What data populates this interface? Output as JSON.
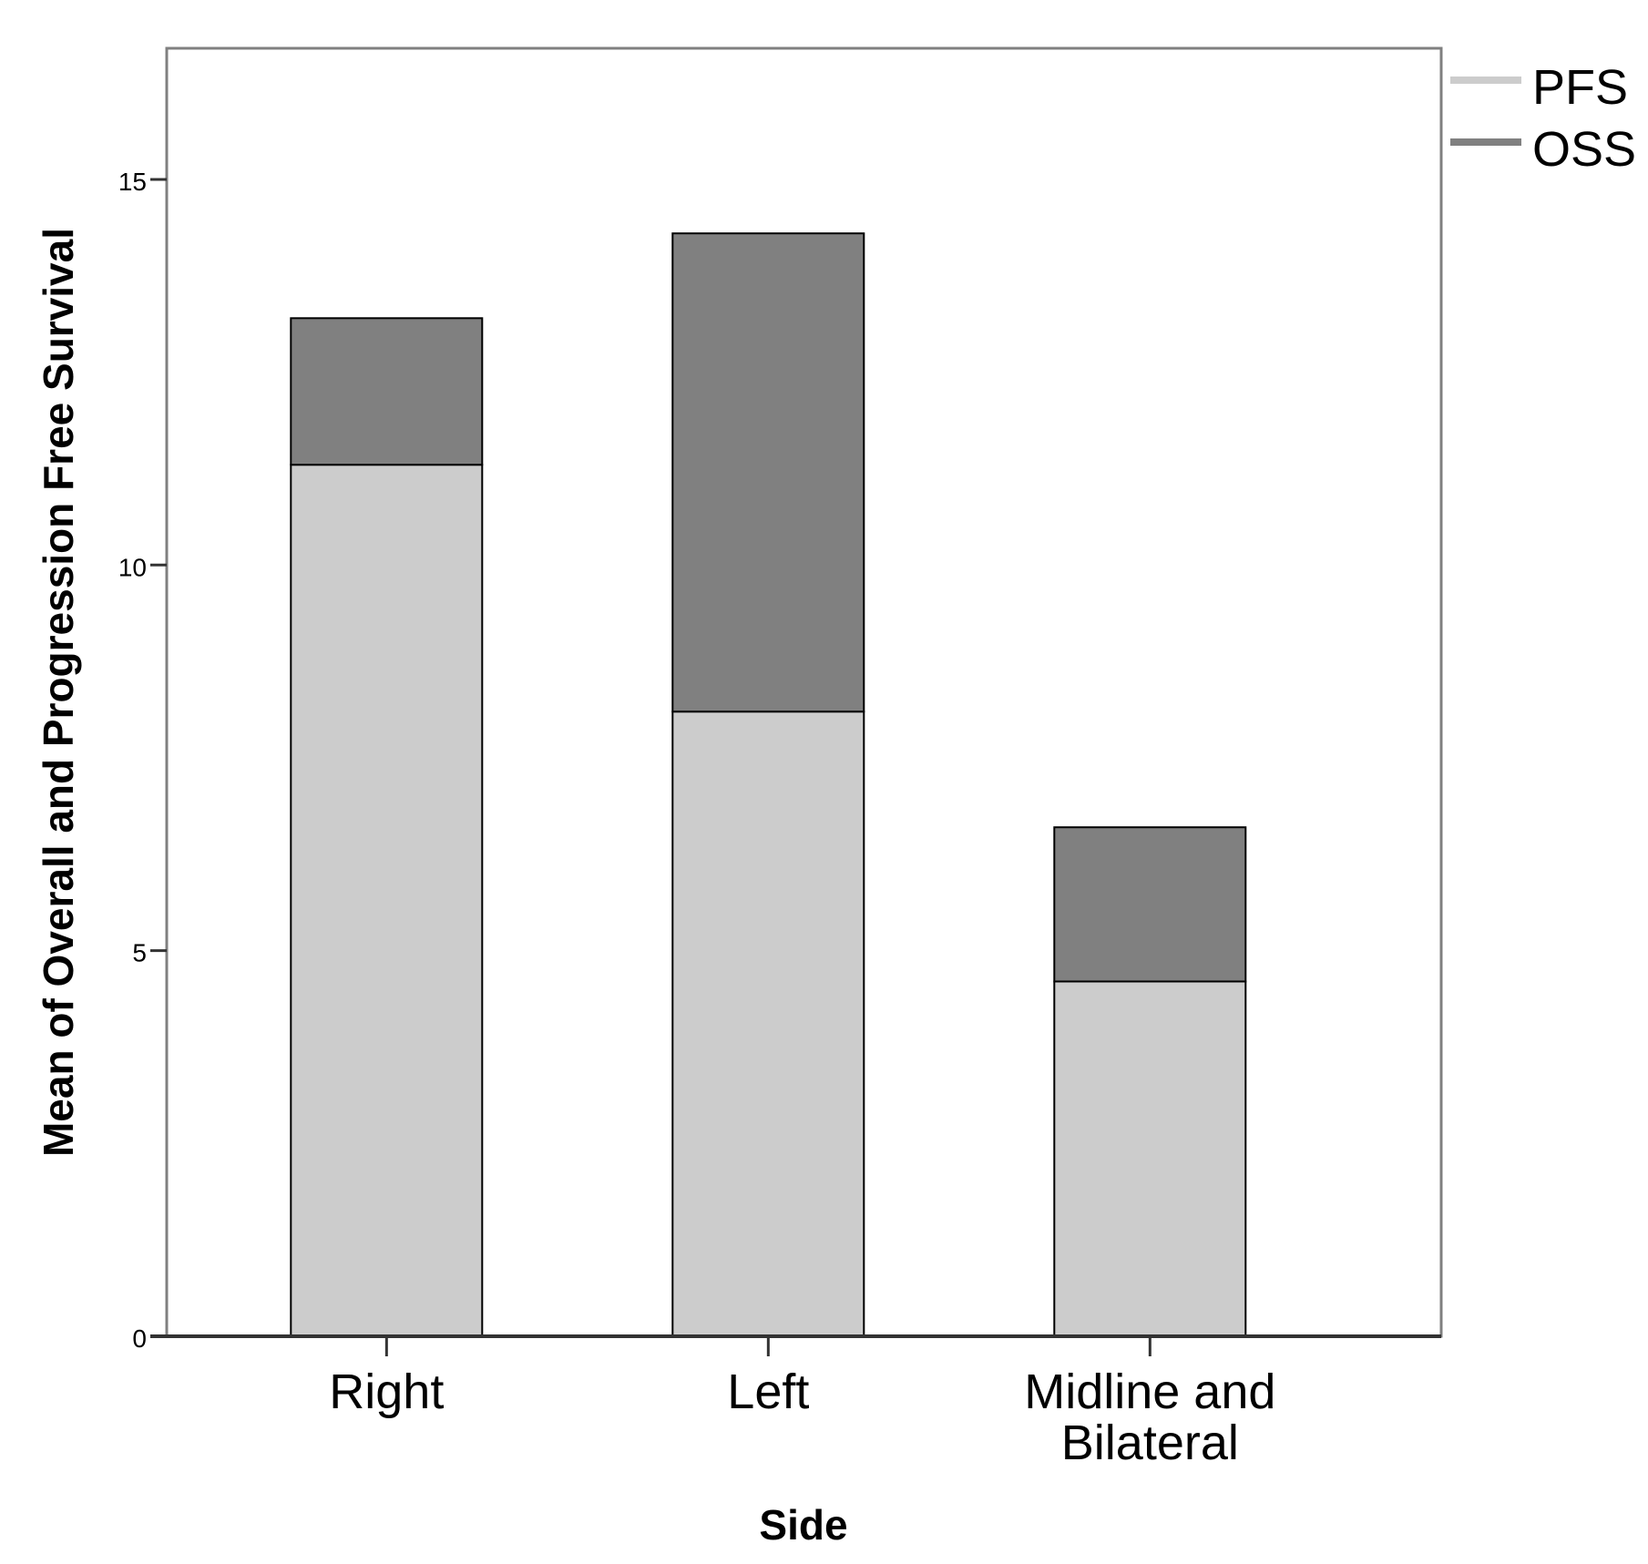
{
  "chart_data": {
    "type": "bar",
    "stacked": true,
    "categories": [
      "Right",
      "Left",
      "Midline and Bilateral"
    ],
    "category_lines": [
      [
        "Right"
      ],
      [
        "Left"
      ],
      [
        "Midline and",
        "Bilateral"
      ]
    ],
    "series": [
      {
        "name": "PFS",
        "values": [
          11.3,
          8.1,
          4.6
        ],
        "color": "#cccccc"
      },
      {
        "name": "OSS",
        "values": [
          1.9,
          6.2,
          2.0
        ],
        "color": "#808080"
      }
    ],
    "xlabel": "Side",
    "ylabel": "Mean of Overall and Progression Free Survival",
    "ylim": [
      0,
      16.7
    ],
    "yticks": [
      0,
      5,
      10,
      15
    ],
    "grid": false,
    "legend_position": "top-right"
  }
}
